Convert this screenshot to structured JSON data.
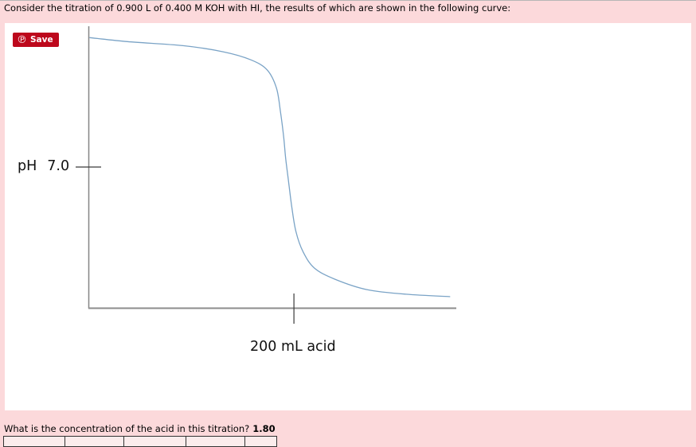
{
  "page": {
    "top_question": "Consider the titration of 0.900 L of 0.400 M KOH with HI, the results of which are shown in the following curve:",
    "bottom_question": "What is the concentration of the acid in this titration?",
    "bottom_answer": "1.80",
    "background_color": "#fcd9db"
  },
  "save_button": {
    "label": "Save",
    "icon": "pinterest-icon",
    "icon_glyph": "℗",
    "color": "#bd081c"
  },
  "labels": {
    "y_prefix": "pH",
    "y_value": "7.0",
    "x_label": "200 mL acid"
  },
  "answer_table": {
    "visible_cell_count": 5
  },
  "chart_data": {
    "type": "line",
    "title": "",
    "xlabel": "mL acid",
    "ylabel": "pH",
    "xlim": [
      0,
      358
    ],
    "ylim": [
      0,
      14
    ],
    "grid": false,
    "legend": false,
    "x_ticks": [
      {
        "value": 200,
        "label": "200 mL acid"
      }
    ],
    "y_ticks": [
      {
        "value": 7.0,
        "label": "pH 7.0"
      }
    ],
    "line_color": "#7aa3c6",
    "axis_color": "#8a8a8a",
    "tick_color": "#3a3a3a",
    "series": [
      {
        "name": "0.900 L of 0.400 M KOH titrated with HI",
        "x": [
          1,
          38,
          92,
          131,
          158,
          174,
          183,
          187,
          190,
          192,
          195,
          198,
          202,
          209,
          220,
          240,
          271,
          309,
          352
        ],
        "y": [
          13.4,
          13.2,
          13.0,
          12.7,
          12.3,
          11.8,
          10.9,
          9.7,
          8.5,
          7.4,
          6.2,
          5.0,
          3.8,
          2.8,
          2.0,
          1.45,
          0.94,
          0.71,
          0.59
        ]
      }
    ]
  }
}
